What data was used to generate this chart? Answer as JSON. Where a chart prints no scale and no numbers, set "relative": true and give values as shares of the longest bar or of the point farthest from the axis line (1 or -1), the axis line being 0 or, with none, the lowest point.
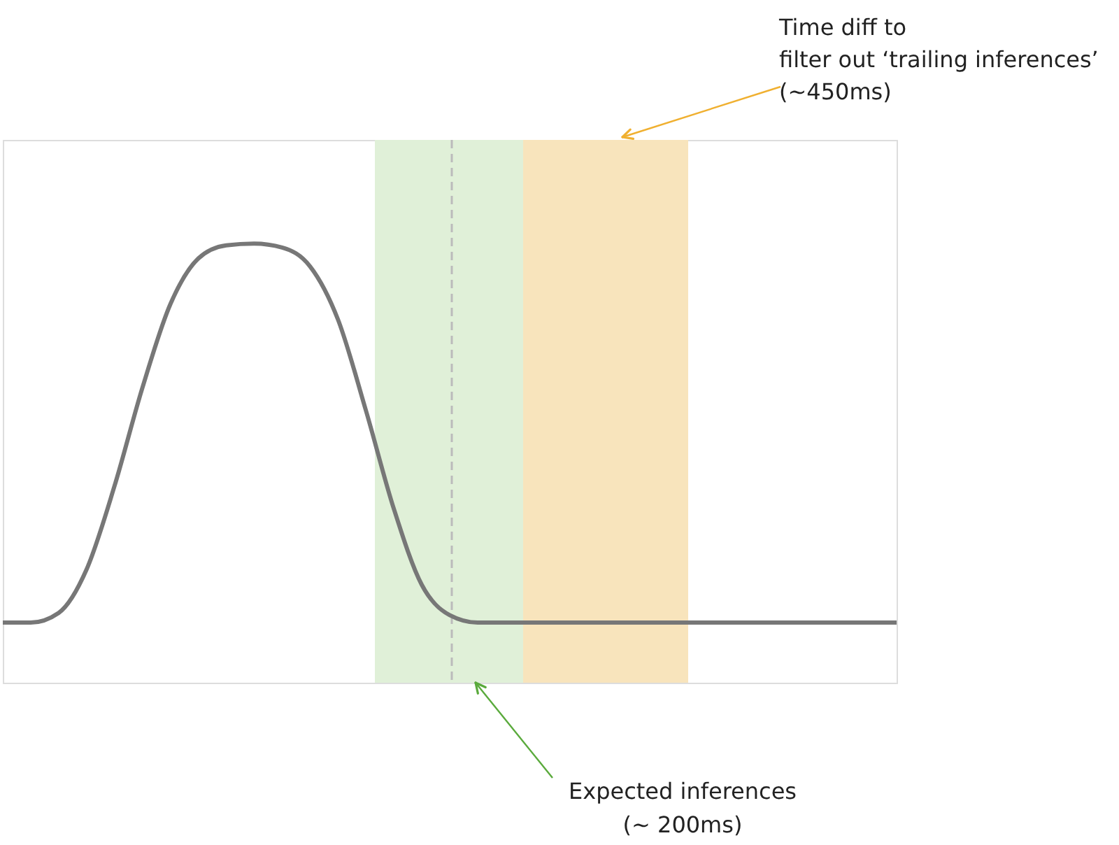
{
  "chart_data": {
    "type": "line",
    "relative": true,
    "marker": "none",
    "line_style": "solid",
    "categories": [
      null,
      null,
      null,
      null,
      null,
      null,
      null,
      null,
      null,
      null,
      null,
      null,
      null,
      null,
      null,
      null,
      null,
      null,
      null,
      null,
      null,
      null,
      null,
      null,
      null,
      null,
      null,
      null,
      null,
      null,
      null,
      null,
      null
    ],
    "series": [
      {
        "color": "#777777",
        "values": [
          0.137,
          0.137,
          0.159,
          0.258,
          0.448,
          0.672,
          0.862,
          0.966,
          0.996,
          1,
          0.991,
          0.948,
          0.827,
          0.62,
          0.396,
          0.223,
          0.154,
          0.137,
          0.137,
          0.137,
          0.137,
          0.137,
          0.137,
          0.137,
          0.137,
          0.137,
          0.137,
          0.137,
          0.137,
          0.137,
          0.137,
          0.137,
          0.137
        ]
      }
    ],
    "annotations": [
      "Expected inferences\n(~ 200ms)",
      "Time diff to\nfilter out ‘trailing inferences’\n(~450ms)"
    ]
  }
}
